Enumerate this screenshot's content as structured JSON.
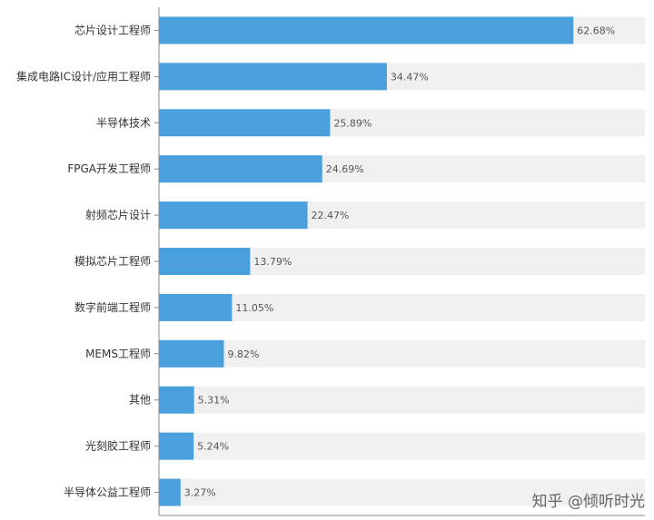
{
  "chart_data": {
    "type": "bar",
    "orientation": "horizontal",
    "categories": [
      "芯片设计工程师",
      "集成电路IC设计/应用工程师",
      "半导体技术",
      "FPGA开发工程师",
      "射频芯片设计",
      "模拟芯片工程师",
      "数字前端工程师",
      "MEMS工程师",
      "其他",
      "光刻胶工程师",
      "半导体公益工程师"
    ],
    "values": [
      62.68,
      34.47,
      25.89,
      24.69,
      22.47,
      13.79,
      11.05,
      9.82,
      5.31,
      5.24,
      3.27
    ],
    "value_labels": [
      "62.68%",
      "34.47%",
      "25.89%",
      "24.69%",
      "22.47%",
      "13.79%",
      "11.05%",
      "9.82%",
      "5.31%",
      "5.24%",
      "3.27%"
    ],
    "xlim": [
      0,
      73.5
    ],
    "grid": false,
    "colors": {
      "bar": "#4a9fdd",
      "track": "#f0f0f0",
      "axis": "#888888"
    }
  },
  "watermark": "知乎 @倾听时光"
}
